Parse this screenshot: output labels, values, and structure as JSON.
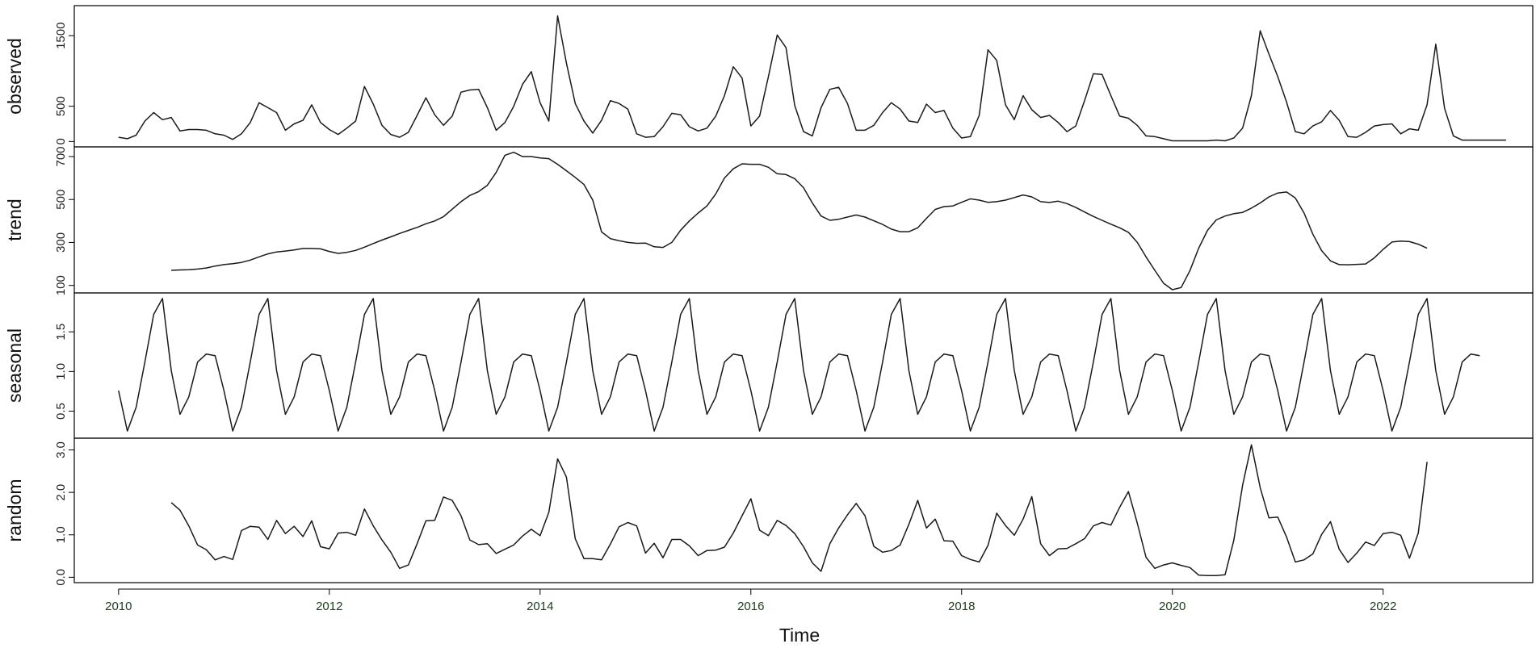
{
  "chart_data": {
    "type": "line",
    "title": "",
    "xlabel": "Time",
    "x_ticks": [
      "2010",
      "2012",
      "2014",
      "2016",
      "2018",
      "2020",
      "2022"
    ],
    "x_tick_values": [
      2010,
      2012,
      2014,
      2016,
      2018,
      2020,
      2022
    ],
    "x_range": [
      2009.58,
      2023.42
    ],
    "frequency": 12,
    "start": 2010.0,
    "panels": [
      {
        "name": "observed",
        "ylim": [
          -30,
          1880
        ],
        "y_ticks": [
          0,
          500,
          1500
        ],
        "y_tick_labels": [
          "0",
          "500",
          "1500"
        ],
        "values": [
          60,
          40,
          90,
          290,
          410,
          310,
          340,
          150,
          170,
          170,
          160,
          110,
          90,
          30,
          110,
          270,
          550,
          480,
          410,
          160,
          250,
          300,
          520,
          270,
          170,
          100,
          190,
          290,
          780,
          530,
          230,
          100,
          60,
          130,
          370,
          620,
          380,
          230,
          360,
          700,
          730,
          740,
          480,
          160,
          270,
          500,
          810,
          990,
          550,
          290,
          1780,
          1110,
          540,
          290,
          120,
          300,
          580,
          540,
          460,
          110,
          60,
          70,
          210,
          400,
          380,
          210,
          150,
          190,
          360,
          650,
          1060,
          900,
          220,
          360,
          920,
          1510,
          1330,
          510,
          140,
          80,
          480,
          740,
          770,
          540,
          160,
          160,
          230,
          410,
          550,
          460,
          290,
          270,
          530,
          410,
          440,
          190,
          50,
          70,
          370,
          1300,
          1150,
          520,
          310,
          650,
          450,
          340,
          370,
          270,
          140,
          220,
          580,
          960,
          950,
          650,
          360,
          330,
          230,
          80,
          70,
          40,
          10,
          10,
          10,
          10,
          10,
          20,
          10,
          50,
          190,
          650,
          1570,
          1240,
          920,
          560,
          140,
          110,
          220,
          280,
          440,
          300,
          70,
          60,
          130,
          220,
          240,
          250,
          110,
          180,
          160,
          520,
          1380,
          470,
          80,
          20,
          20,
          20,
          20,
          20,
          20
        ]
      },
      {
        "name": "trend",
        "ylim": [
          80,
          730
        ],
        "y_ticks": [
          100,
          300,
          500,
          700
        ],
        "y_tick_labels": [
          "100",
          "300",
          "500",
          "700"
        ],
        "start_offset": 6,
        "values": [
          170,
          172,
          173,
          176,
          181,
          190,
          197,
          201,
          207,
          218,
          233,
          247,
          256,
          260,
          265,
          272,
          272,
          270,
          258,
          249,
          254,
          263,
          278,
          295,
          311,
          326,
          342,
          356,
          370,
          387,
          400,
          420,
          455,
          490,
          519,
          537,
          566,
          626,
          706,
          720,
          700,
          700,
          693,
          690,
          664,
          634,
          603,
          570,
          497,
          349,
          318,
          308,
          300,
          296,
          297,
          280,
          277,
          300,
          357,
          400,
          437,
          470,
          526,
          600,
          643,
          666,
          664,
          664,
          650,
          620,
          616,
          597,
          555,
          484,
          423,
          403,
          408,
          418,
          428,
          418,
          401,
          384,
          362,
          350,
          350,
          368,
          412,
          454,
          467,
          470,
          487,
          503,
          497,
          487,
          490,
          497,
          509,
          521,
          512,
          490,
          486,
          492,
          481,
          463,
          442,
          421,
          403,
          385,
          368,
          347,
          301,
          233,
          170,
          110,
          79,
          90,
          169,
          273,
          356,
          405,
          423,
          434,
          440,
          460,
          484,
          512,
          530,
          535,
          507,
          437,
          338,
          262,
          214,
          197,
          196,
          198,
          200,
          228,
          268,
          302,
          306,
          304,
          292,
          273
        ]
      },
      {
        "name": "seasonal",
        "ylim": [
          0.2,
          1.95
        ],
        "y_ticks": [
          0.5,
          1.0,
          1.5
        ],
        "y_tick_labels": [
          "0.5",
          "1.0",
          "1.5"
        ],
        "pattern": [
          0.76,
          0.25,
          0.55,
          1.12,
          1.72,
          1.92,
          1.01,
          0.46,
          0.68,
          1.12,
          1.22,
          1.2
        ],
        "n_months": 156
      },
      {
        "name": "random",
        "ylim": [
          -0.05,
          3.2
        ],
        "y_ticks": [
          0.0,
          1.0,
          2.0,
          3.0
        ],
        "y_tick_labels": [
          "0.0",
          "1.0",
          "2.0",
          "3.0"
        ],
        "start_offset": 6,
        "values": [
          1.76,
          1.58,
          1.21,
          0.76,
          0.65,
          0.41,
          0.49,
          0.42,
          1.1,
          1.2,
          1.18,
          0.89,
          1.34,
          1.03,
          1.2,
          0.96,
          1.33,
          0.72,
          0.67,
          1.04,
          1.06,
          0.99,
          1.61,
          1.21,
          0.88,
          0.59,
          0.21,
          0.29,
          0.79,
          1.33,
          1.34,
          1.89,
          1.81,
          1.45,
          0.88,
          0.77,
          0.79,
          0.56,
          0.66,
          0.76,
          0.97,
          1.13,
          0.98,
          1.53,
          2.79,
          2.36,
          0.91,
          0.44,
          0.44,
          0.41,
          0.78,
          1.19,
          1.29,
          1.21,
          0.57,
          0.8,
          0.46,
          0.89,
          0.89,
          0.74,
          0.51,
          0.63,
          0.64,
          0.71,
          1.04,
          1.45,
          1.85,
          1.11,
          0.98,
          1.34,
          1.22,
          1.03,
          0.72,
          0.34,
          0.14,
          0.79,
          1.16,
          1.47,
          1.74,
          1.45,
          0.73,
          0.59,
          0.63,
          0.76,
          1.25,
          1.81,
          1.16,
          1.37,
          0.86,
          0.85,
          0.51,
          0.42,
          0.36,
          0.75,
          1.51,
          1.22,
          0.99,
          1.37,
          1.9,
          0.79,
          0.51,
          0.67,
          0.68,
          0.79,
          0.91,
          1.21,
          1.29,
          1.23,
          1.65,
          2.02,
          1.28,
          0.47,
          0.21,
          0.29,
          0.34,
          0.28,
          0.23,
          0.05,
          0.04,
          0.04,
          0.06,
          0.87,
          2.17,
          3.12,
          2.11,
          1.4,
          1.42,
          0.95,
          0.36,
          0.41,
          0.55,
          1.01,
          1.31,
          0.66,
          0.35,
          0.57,
          0.83,
          0.75,
          1.03,
          1.06,
          0.99,
          0.45,
          1.04,
          2.72
        ]
      }
    ]
  }
}
